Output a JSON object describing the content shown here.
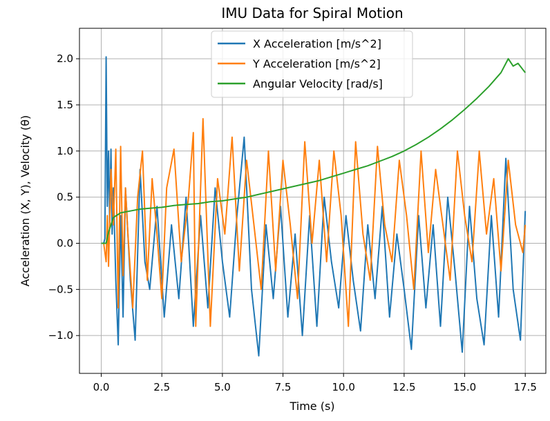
{
  "chart_data": {
    "type": "line",
    "title": "IMU Data for Spiral Motion",
    "xlabel": "Time (s)",
    "ylabel": "Acceleration (X, Y), Velocity (θ)",
    "xlim": [
      -0.9,
      18.35
    ],
    "ylim": [
      -1.41,
      2.33
    ],
    "grid": true,
    "legend_position": "top-center",
    "x_ticks": [
      0.0,
      2.5,
      5.0,
      7.5,
      10.0,
      12.5,
      15.0,
      17.5
    ],
    "x_tick_labels": [
      "0.0",
      "2.5",
      "5.0",
      "7.5",
      "10.0",
      "12.5",
      "15.0",
      "17.5"
    ],
    "y_ticks": [
      -1.0,
      -0.5,
      0.0,
      0.5,
      1.0,
      1.5,
      2.0
    ],
    "y_tick_labels": [
      "−1.0",
      "−0.5",
      "0.0",
      "0.5",
      "1.0",
      "1.5",
      "2.0"
    ],
    "series": [
      {
        "name": "X Acceleration [m/s^2]",
        "color": "#1f77b4",
        "x": [
          0.0,
          0.1,
          0.15,
          0.2,
          0.25,
          0.3,
          0.35,
          0.4,
          0.45,
          0.5,
          0.6,
          0.7,
          0.8,
          0.9,
          1.0,
          1.2,
          1.4,
          1.6,
          1.8,
          2.0,
          2.3,
          2.6,
          2.9,
          3.2,
          3.5,
          3.8,
          4.1,
          4.4,
          4.7,
          5.0,
          5.3,
          5.6,
          5.9,
          6.2,
          6.5,
          6.8,
          7.1,
          7.4,
          7.7,
          8.0,
          8.3,
          8.6,
          8.9,
          9.2,
          9.5,
          9.8,
          10.1,
          10.4,
          10.7,
          11.0,
          11.3,
          11.6,
          11.9,
          12.2,
          12.5,
          12.8,
          13.1,
          13.4,
          13.7,
          14.0,
          14.3,
          14.6,
          14.9,
          15.2,
          15.5,
          15.8,
          16.1,
          16.4,
          16.7,
          17.0,
          17.3,
          17.5
        ],
        "y": [
          0.0,
          0.0,
          0.05,
          2.02,
          0.4,
          1.0,
          0.2,
          1.02,
          0.1,
          0.6,
          -0.4,
          -1.1,
          0.3,
          -0.8,
          0.6,
          -0.4,
          -1.05,
          0.8,
          -0.2,
          -0.5,
          0.4,
          -0.8,
          0.2,
          -0.6,
          0.5,
          -0.9,
          0.3,
          -0.7,
          0.6,
          -0.2,
          -0.8,
          0.3,
          1.15,
          -0.5,
          -1.22,
          0.2,
          -0.6,
          0.4,
          -0.8,
          0.1,
          -1.0,
          0.3,
          -0.9,
          0.5,
          -0.2,
          -0.7,
          0.3,
          -0.4,
          -0.95,
          0.2,
          -0.6,
          0.4,
          -0.8,
          0.1,
          -0.5,
          -1.15,
          0.3,
          -0.7,
          0.2,
          -0.9,
          0.5,
          -0.3,
          -1.18,
          0.4,
          -0.6,
          -1.1,
          0.3,
          -0.8,
          0.92,
          -0.5,
          -1.05,
          0.35
        ]
      },
      {
        "name": "Y Acceleration [m/s^2]",
        "color": "#ff7f0e",
        "x": [
          0.0,
          0.1,
          0.2,
          0.25,
          0.3,
          0.4,
          0.5,
          0.6,
          0.7,
          0.8,
          0.9,
          1.0,
          1.1,
          1.3,
          1.5,
          1.7,
          1.9,
          2.1,
          2.3,
          2.5,
          2.7,
          3.0,
          3.3,
          3.6,
          3.8,
          3.9,
          4.2,
          4.5,
          4.8,
          5.1,
          5.4,
          5.7,
          6.0,
          6.3,
          6.6,
          6.9,
          7.2,
          7.5,
          7.8,
          8.1,
          8.4,
          8.7,
          9.0,
          9.3,
          9.6,
          9.9,
          10.2,
          10.5,
          10.8,
          11.1,
          11.4,
          11.7,
          12.0,
          12.3,
          12.6,
          12.9,
          13.2,
          13.5,
          13.8,
          14.1,
          14.4,
          14.7,
          15.0,
          15.3,
          15.6,
          15.9,
          16.2,
          16.5,
          16.8,
          17.1,
          17.4,
          17.5
        ],
        "y": [
          0.0,
          0.0,
          -0.2,
          0.3,
          -0.25,
          0.8,
          0.2,
          1.02,
          -0.7,
          1.05,
          -0.35,
          0.6,
          0.1,
          -0.7,
          0.5,
          1.0,
          -0.4,
          0.7,
          0.1,
          -0.6,
          0.6,
          1.02,
          -0.2,
          0.5,
          1.2,
          -0.9,
          1.35,
          -0.9,
          0.7,
          0.1,
          1.15,
          -0.3,
          0.9,
          0.2,
          -0.5,
          1.0,
          -0.3,
          0.9,
          0.2,
          -0.6,
          1.1,
          0.0,
          0.9,
          -0.2,
          1.0,
          0.3,
          -0.9,
          1.1,
          0.1,
          -0.4,
          1.05,
          0.2,
          -0.2,
          0.9,
          0.3,
          -0.5,
          1.0,
          -0.1,
          0.8,
          0.2,
          -0.4,
          1.0,
          0.3,
          -0.2,
          1.0,
          0.1,
          0.7,
          -0.3,
          0.9,
          0.2,
          -0.1,
          0.2
        ]
      },
      {
        "name": "Angular Velocity [rad/s]",
        "color": "#2ca02c",
        "x": [
          0.0,
          0.2,
          0.3,
          0.5,
          0.8,
          1.2,
          1.6,
          2.0,
          2.5,
          3.0,
          3.5,
          4.0,
          4.5,
          5.0,
          5.5,
          6.0,
          6.5,
          7.0,
          7.5,
          8.0,
          8.5,
          9.0,
          9.5,
          10.0,
          10.5,
          11.0,
          11.5,
          12.0,
          12.5,
          13.0,
          13.5,
          14.0,
          14.5,
          15.0,
          15.5,
          16.0,
          16.5,
          16.8,
          17.0,
          17.2,
          17.5
        ],
        "y": [
          0.0,
          0.0,
          0.12,
          0.28,
          0.33,
          0.35,
          0.37,
          0.38,
          0.39,
          0.41,
          0.42,
          0.43,
          0.45,
          0.46,
          0.48,
          0.5,
          0.53,
          0.56,
          0.59,
          0.62,
          0.65,
          0.68,
          0.72,
          0.76,
          0.8,
          0.84,
          0.89,
          0.94,
          1.0,
          1.07,
          1.15,
          1.24,
          1.34,
          1.45,
          1.57,
          1.7,
          1.85,
          2.0,
          1.92,
          1.95,
          1.85
        ]
      }
    ]
  }
}
